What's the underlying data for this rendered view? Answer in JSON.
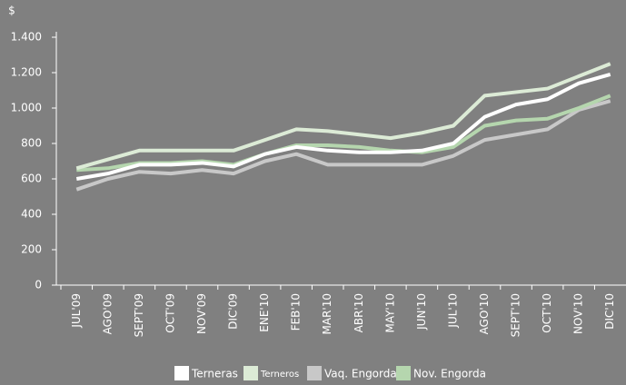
{
  "chart_data": {
    "type": "line",
    "y_label": "$",
    "categories": [
      "JUL'09",
      "AGO'09",
      "SEPT'09",
      "OCT'09",
      "NOV'09",
      "DIC'09",
      "ENE'10",
      "FEB'10",
      "MAR'10",
      "ABR'10",
      "MAY'10",
      "JUN'10",
      "JUL'10",
      "AGO'10",
      "SEPT'10",
      "OCT'10",
      "NOV'10",
      "DIC'10"
    ],
    "series": [
      {
        "name": "Terneras",
        "color": "#ffffff",
        "values": [
          600,
          630,
          680,
          680,
          690,
          670,
          740,
          780,
          760,
          750,
          750,
          760,
          800,
          950,
          1020,
          1050,
          1140,
          1190
        ]
      },
      {
        "name": "Terneros",
        "color": "#dcebd6",
        "values": [
          660,
          710,
          760,
          760,
          760,
          760,
          820,
          880,
          870,
          850,
          830,
          860,
          900,
          1070,
          1090,
          1110,
          1180,
          1250
        ]
      },
      {
        "name": "Vaq. Engorda",
        "color": "#c8c8c8",
        "values": [
          540,
          600,
          640,
          630,
          650,
          630,
          700,
          740,
          680,
          680,
          680,
          680,
          730,
          820,
          850,
          880,
          990,
          1040
        ]
      },
      {
        "name": "Nov. Engorda",
        "color": "#b5d6ae",
        "values": [
          650,
          660,
          690,
          690,
          700,
          680,
          740,
          790,
          790,
          780,
          760,
          750,
          780,
          900,
          930,
          940,
          1000,
          1070
        ]
      }
    ],
    "ylim": [
      0,
      1400
    ],
    "yticks": [
      0,
      200,
      400,
      600,
      800,
      {
        "value": 1000,
        "label": "1.000"
      },
      {
        "value": 1200,
        "label": "1.200"
      },
      {
        "value": 1400,
        "label": "1.400"
      }
    ],
    "grid": false
  }
}
